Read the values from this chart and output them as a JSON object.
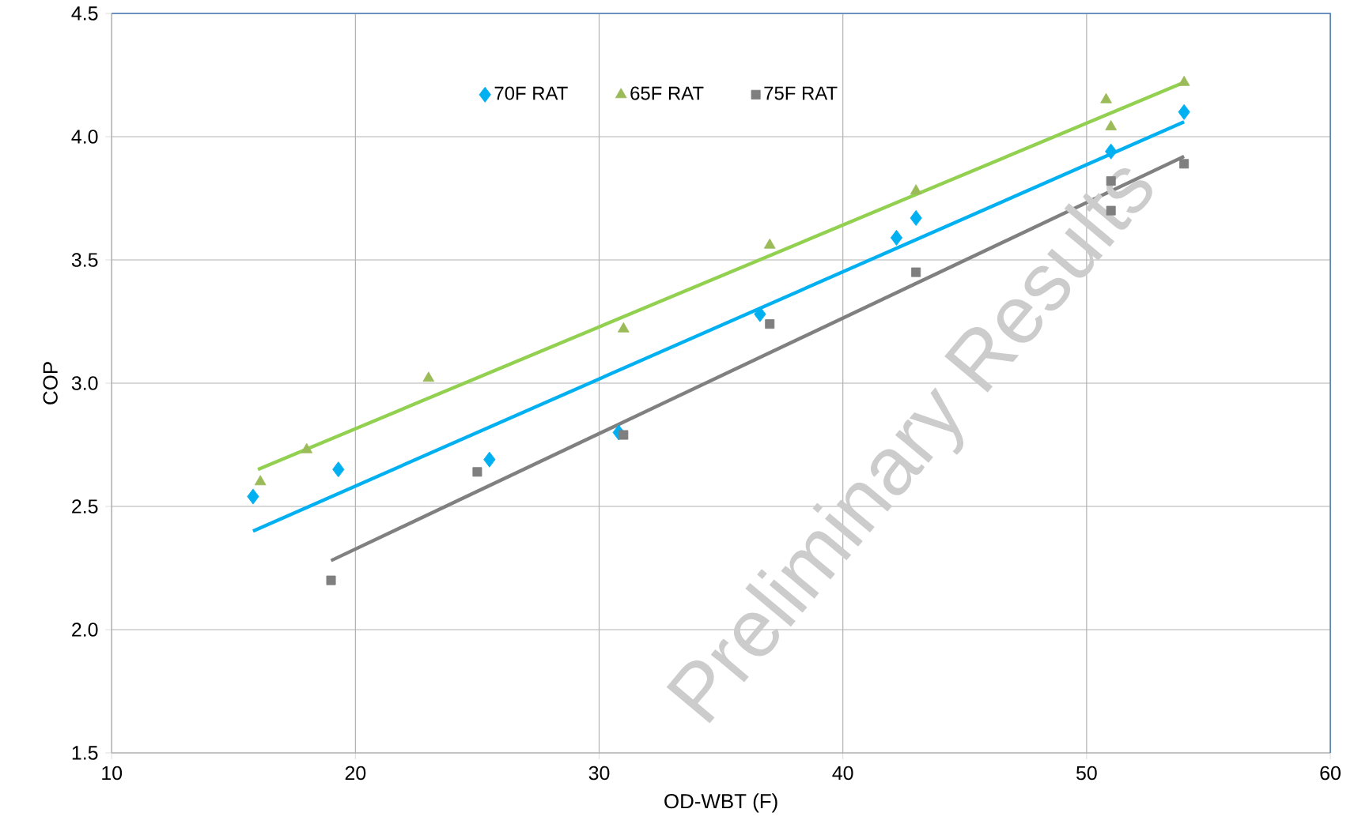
{
  "chart_data": {
    "type": "scatter",
    "xlabel": "OD-WBT (F)",
    "ylabel": "COP",
    "xlim": [
      10,
      60
    ],
    "xticks": [
      10,
      20,
      30,
      40,
      50,
      60
    ],
    "ylim": [
      1.5,
      4.5
    ],
    "yticks": [
      {
        "value": 1.5,
        "label": "1.5"
      },
      {
        "value": 2.0,
        "label": "2.0"
      },
      {
        "value": 2.5,
        "label": "2.5"
      },
      {
        "value": 3.0,
        "label": "3.0"
      },
      {
        "value": 3.5,
        "label": "3.5"
      },
      {
        "value": 4.0,
        "label": "4.0"
      },
      {
        "value": 4.5,
        "label": "4.5"
      }
    ],
    "grid": true,
    "legend": "top",
    "annotations": [
      "Preliminary Results"
    ],
    "series": [
      {
        "name": "70F RAT",
        "marker": "diamond",
        "color": "#00b0f0",
        "x": [
          15.8,
          19.3,
          25.5,
          30.8,
          36.6,
          42.2,
          43.0,
          51.0,
          54.0
        ],
        "values": [
          2.54,
          2.65,
          2.69,
          2.8,
          3.28,
          3.59,
          3.67,
          3.94,
          4.1
        ]
      },
      {
        "name": "65F RAT",
        "marker": "triangle",
        "color": "#9bbb59",
        "x": [
          16.1,
          18.0,
          23.0,
          31.0,
          37.0,
          43.0,
          50.8,
          51.0,
          54.0
        ],
        "values": [
          2.6,
          2.73,
          3.02,
          3.22,
          3.56,
          3.78,
          4.15,
          4.04,
          4.22
        ]
      },
      {
        "name": "75F RAT",
        "marker": "square",
        "color": "#7f7f7f",
        "x": [
          19.0,
          25.0,
          31.0,
          37.0,
          43.0,
          51.0,
          51.0,
          54.0
        ],
        "values": [
          2.2,
          2.64,
          2.79,
          3.24,
          3.45,
          3.82,
          3.7,
          3.89
        ]
      },
      {
        "type": "line",
        "color": "#00b0f0",
        "x": [
          15.8,
          54.0
        ],
        "values": [
          2.4,
          4.06
        ]
      },
      {
        "type": "line",
        "color": "#92d050",
        "x": [
          16.0,
          54.0
        ],
        "values": [
          2.65,
          4.22
        ]
      },
      {
        "type": "line",
        "color": "#808080",
        "x": [
          19.0,
          54.0
        ],
        "values": [
          2.28,
          3.92
        ]
      }
    ]
  }
}
